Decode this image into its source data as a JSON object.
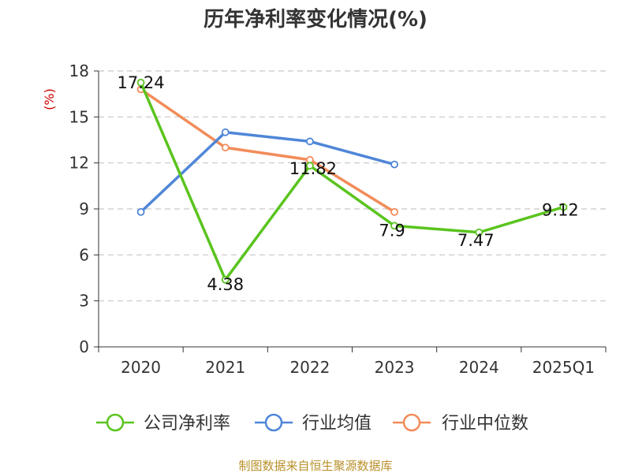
{
  "chart_data": {
    "type": "line",
    "title": "历年净利率变化情况(%)",
    "ylabel": "(%)",
    "xlabel": "",
    "categories": [
      "2020",
      "2021",
      "2022",
      "2023",
      "2024",
      "2025Q1"
    ],
    "ylim": [
      0,
      18
    ],
    "yticks": [
      0,
      3,
      6,
      9,
      12,
      15,
      18
    ],
    "grid": true,
    "legend_position": "bottom",
    "series": [
      {
        "name": "公司净利率",
        "color": "#5ac41e",
        "values": [
          17.24,
          4.38,
          11.82,
          7.9,
          7.47,
          9.12
        ],
        "labels": [
          "17.24",
          "4.38",
          "11.82",
          "7.9",
          "7.47",
          "9.12"
        ]
      },
      {
        "name": "行业均值",
        "color": "#4f86d8",
        "values": [
          8.8,
          14.0,
          13.4,
          11.9,
          null,
          null
        ]
      },
      {
        "name": "行业中位数",
        "color": "#f28c5a",
        "values": [
          16.8,
          13.0,
          12.2,
          8.8,
          null,
          null
        ]
      }
    ]
  },
  "source": "制图数据来自恒生聚源数据库"
}
